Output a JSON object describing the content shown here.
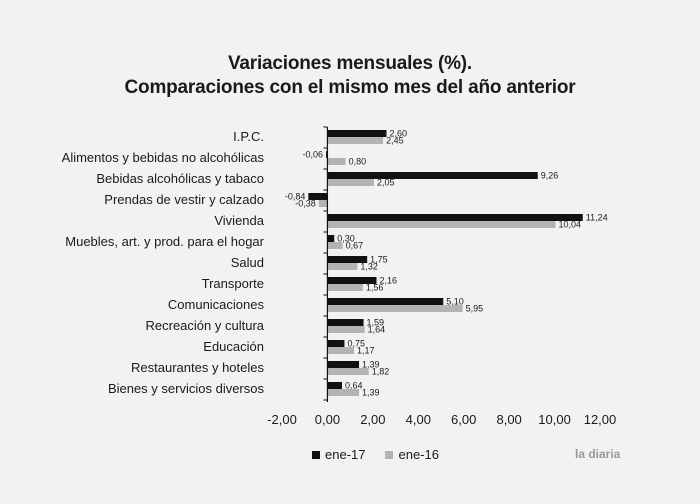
{
  "chart_data": {
    "type": "bar",
    "orientation": "horizontal",
    "title_line1": "Variaciones mensuales (%).",
    "title_line2": "Comparaciones con el mismo mes del año anterior",
    "categories": [
      "I.P.C.",
      "Alimentos y bebidas no alcohólicas",
      "Bebidas alcohólicas y tabaco",
      "Prendas de vestir y calzado",
      "Vivienda",
      "Muebles, art. y prod. para el hogar",
      "Salud",
      "Transporte",
      "Comunicaciones",
      "Recreación y cultura",
      "Educación",
      "Restaurantes y hoteles",
      "Bienes y servicios diversos"
    ],
    "series": [
      {
        "name": "ene-17",
        "color": "#111111",
        "values": [
          2.6,
          -0.06,
          9.26,
          -0.84,
          11.24,
          0.3,
          1.75,
          2.16,
          5.1,
          1.59,
          0.75,
          1.39,
          0.64
        ],
        "labels": [
          "2,60",
          "-0,06",
          "9,26",
          "-0,84",
          "11,24",
          "0,30",
          "1,75",
          "2,16",
          "5,10",
          "1,59",
          "0,75",
          "1,39",
          "0,64"
        ]
      },
      {
        "name": "ene-16",
        "color": "#b3b3b3",
        "values": [
          2.45,
          0.8,
          2.05,
          -0.38,
          10.04,
          0.67,
          1.32,
          1.56,
          5.95,
          1.64,
          1.17,
          1.82,
          1.39
        ],
        "labels": [
          "2,45",
          "0,80",
          "2,05",
          "-0,38",
          "10,04",
          "0,67",
          "1,32",
          "1,56",
          "5,95",
          "1,64",
          "1,17",
          "1,82",
          "1,39"
        ]
      }
    ],
    "xlim": [
      -2,
      12
    ],
    "xticks": [
      -2,
      0,
      2,
      4,
      6,
      8,
      10,
      12
    ],
    "xtick_labels": [
      "-2,00",
      "0,00",
      "2,00",
      "4,00",
      "6,00",
      "8,00",
      "10,00",
      "12,00"
    ],
    "legend_position": "bottom",
    "grid": false
  },
  "brand": "la diaria"
}
